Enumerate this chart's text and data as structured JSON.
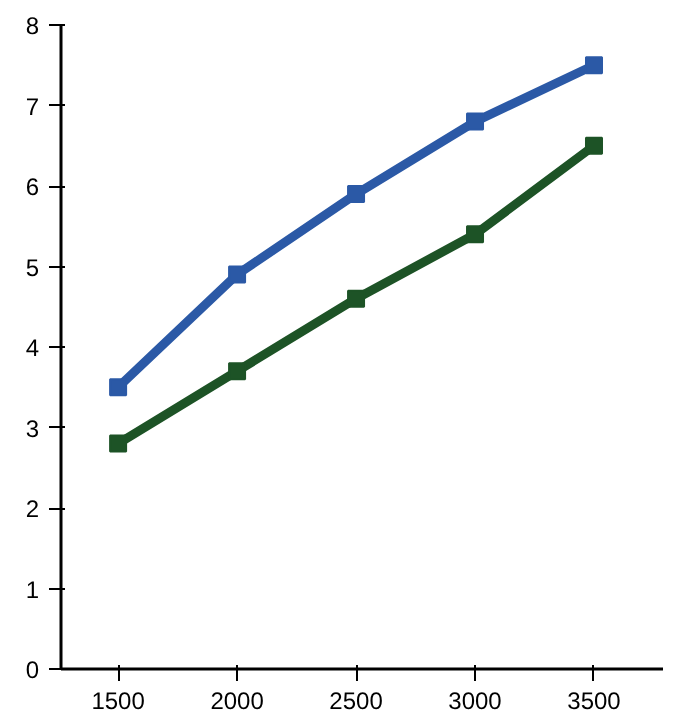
{
  "chart_data": {
    "type": "line",
    "x": [
      1500,
      2000,
      2500,
      3000,
      3500
    ],
    "series": [
      {
        "color": "#2b59a6",
        "values": [
          3.5,
          4.9,
          5.9,
          6.8,
          7.5
        ]
      },
      {
        "color": "#1d5326",
        "values": [
          2.8,
          3.7,
          4.6,
          5.4,
          6.5
        ]
      }
    ],
    "xlim": [
      1260,
      3790
    ],
    "ylim": [
      0,
      8
    ],
    "xticks": [
      1500,
      2000,
      2500,
      3000,
      3500
    ],
    "yticks": [
      0,
      1,
      2,
      3,
      4,
      5,
      6,
      7,
      8
    ],
    "grid": false,
    "marker": "square",
    "line_style": "solid"
  }
}
